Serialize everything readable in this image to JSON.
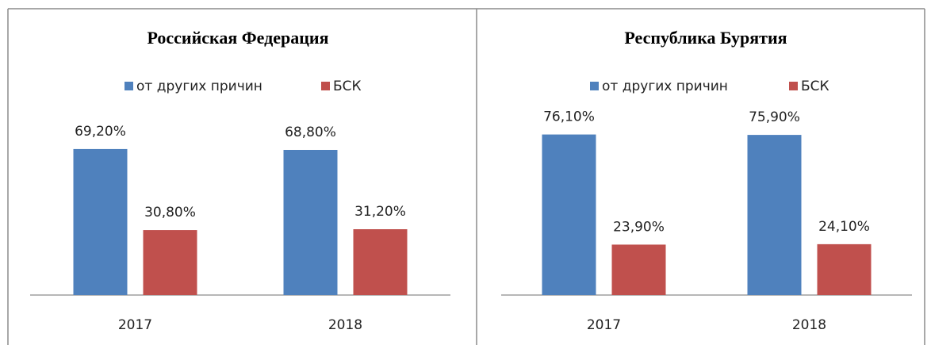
{
  "chart_data": [
    {
      "type": "bar",
      "title": "Российская Федерация",
      "categories": [
        "2017",
        "2018"
      ],
      "series": [
        {
          "name": "от других причин",
          "color": "#4f81bd",
          "values": [
            69.2,
            68.8
          ],
          "value_labels": [
            "69,20%",
            "68,80%"
          ]
        },
        {
          "name": "БСК",
          "color": "#c0504d",
          "values": [
            30.8,
            31.2
          ],
          "value_labels": [
            "30,80%",
            "31,20%"
          ]
        }
      ]
    },
    {
      "type": "bar",
      "title": "Республика Бурятия",
      "categories": [
        "2017",
        "2018"
      ],
      "series": [
        {
          "name": "от других причин",
          "color": "#4f81bd",
          "values": [
            76.1,
            75.9
          ],
          "value_labels": [
            "76,10%",
            "75,90%"
          ]
        },
        {
          "name": "БСК",
          "color": "#c0504d",
          "values": [
            23.9,
            24.1
          ],
          "value_labels": [
            "23,90%",
            "24,10%"
          ]
        }
      ]
    }
  ]
}
